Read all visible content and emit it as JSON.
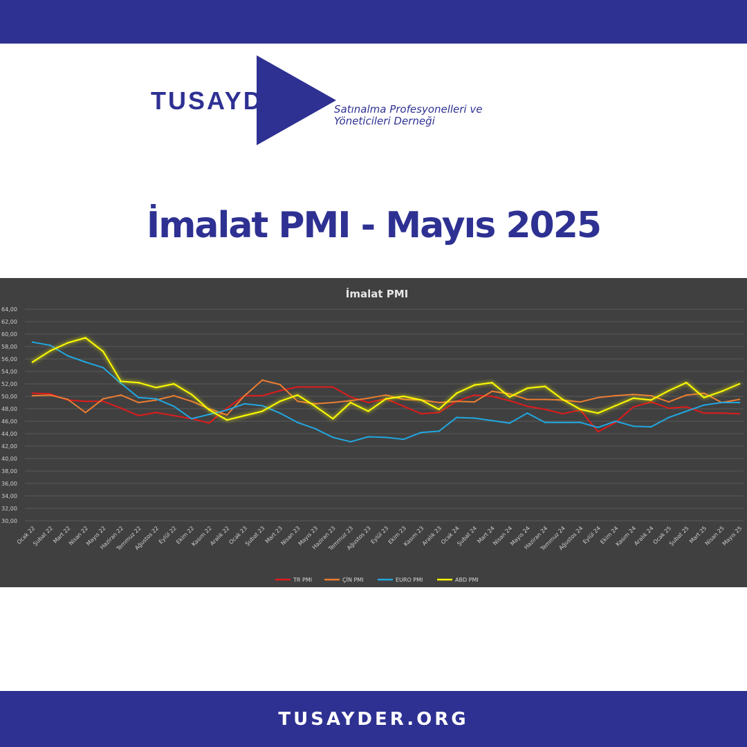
{
  "brand": {
    "name": "TUSAYDER",
    "tagline_line1": "Satınalma Profesyonelleri ve",
    "tagline_line2": "Yöneticileri Derneği",
    "colors": {
      "navy": "#2e3192",
      "white": "#ffffff"
    }
  },
  "headline": "İmalat PMI - Mayıs 2025",
  "footer": {
    "url": "TUSAYDER.ORG"
  },
  "chart_data": {
    "type": "line",
    "title": "İmalat PMI",
    "xlabel": "",
    "ylabel": "",
    "ylim": [
      30,
      64
    ],
    "y_ticks": [
      "30,00",
      "32,00",
      "34,00",
      "36,00",
      "38,00",
      "40,00",
      "42,00",
      "44,00",
      "46,00",
      "48,00",
      "50,00",
      "52,00",
      "54,00",
      "56,00",
      "58,00",
      "60,00",
      "62,00",
      "64,00"
    ],
    "grid": true,
    "legend_position": "bottom",
    "categories": [
      "Ocak 22",
      "Şubat 22",
      "Mart 22",
      "Nisan 22",
      "Mayıs 22",
      "Haziran 22",
      "Temmuz 22",
      "Ağustos 22",
      "Eylül 22",
      "Ekim 22",
      "Kasım 22",
      "Aralık 22",
      "Ocak 23",
      "Şubat 23",
      "Mart 23",
      "Nisan 23",
      "Mayıs 23",
      "Haziran 23",
      "Temmuz 23",
      "Ağustos 23",
      "Eylül 23",
      "Ekim 23",
      "Kasım 23",
      "Aralık 23",
      "Ocak 24",
      "Şubat 24",
      "Mart 24",
      "Nisan 24",
      "Mayıs 24",
      "Haziran 24",
      "Temmuz 24",
      "Ağustos 24",
      "Eylül 24",
      "Ekim 24",
      "Kasım 24",
      "Aralık 24",
      "Ocak 25",
      "Şubat 25",
      "Mart 25",
      "Nisan 25",
      "Mayıs 25"
    ],
    "series": [
      {
        "name": "TR PMI",
        "color": "#e01b1b",
        "glow": false,
        "values": [
          50.5,
          50.4,
          49.4,
          49.2,
          49.2,
          48.1,
          46.9,
          47.4,
          46.9,
          46.4,
          45.7,
          48.1,
          50.1,
          50.1,
          50.9,
          51.5,
          51.5,
          51.5,
          49.9,
          49.0,
          49.6,
          48.4,
          47.2,
          47.4,
          49.2,
          50.2,
          50.0,
          49.3,
          48.4,
          47.9,
          47.2,
          47.8,
          44.3,
          45.8,
          48.3,
          49.1,
          48.1,
          48.3,
          47.3,
          47.3,
          47.2
        ]
      },
      {
        "name": "ÇİN PMI",
        "color": "#ed7d31",
        "glow": false,
        "values": [
          50.1,
          50.2,
          49.5,
          47.4,
          49.6,
          50.2,
          49.0,
          49.4,
          50.1,
          49.2,
          48.0,
          47.0,
          50.1,
          52.6,
          51.9,
          49.2,
          48.8,
          49.0,
          49.3,
          49.7,
          50.2,
          49.5,
          49.4,
          49.0,
          49.2,
          49.1,
          50.8,
          50.4,
          49.5,
          49.5,
          49.4,
          49.1,
          49.8,
          50.1,
          50.3,
          50.1,
          49.1,
          50.2,
          50.5,
          49.0,
          49.5
        ]
      },
      {
        "name": "EURO PMI",
        "color": "#21a7e0",
        "glow": false,
        "values": [
          58.7,
          58.2,
          56.5,
          55.5,
          54.6,
          52.1,
          49.8,
          49.6,
          48.4,
          46.4,
          47.1,
          47.8,
          48.8,
          48.5,
          47.3,
          45.8,
          44.8,
          43.4,
          42.7,
          43.5,
          43.4,
          43.1,
          44.2,
          44.4,
          46.6,
          46.5,
          46.1,
          45.7,
          47.3,
          45.8,
          45.8,
          45.8,
          45.0,
          46.0,
          45.2,
          45.1,
          46.6,
          47.6,
          48.6,
          49.0,
          49.0
        ]
      },
      {
        "name": "ABD PMI",
        "color": "#ffff00",
        "glow": true,
        "values": [
          55.5,
          57.3,
          58.6,
          59.4,
          57.2,
          52.4,
          52.2,
          51.4,
          52.0,
          50.3,
          47.8,
          46.2,
          46.9,
          47.6,
          49.2,
          50.2,
          48.4,
          46.4,
          49.0,
          47.6,
          49.6,
          50.0,
          49.4,
          47.9,
          50.5,
          51.8,
          52.2,
          49.9,
          51.3,
          51.6,
          49.5,
          47.9,
          47.3,
          48.5,
          49.7,
          49.4,
          50.9,
          52.2,
          49.8,
          50.8,
          52.0
        ]
      }
    ]
  }
}
